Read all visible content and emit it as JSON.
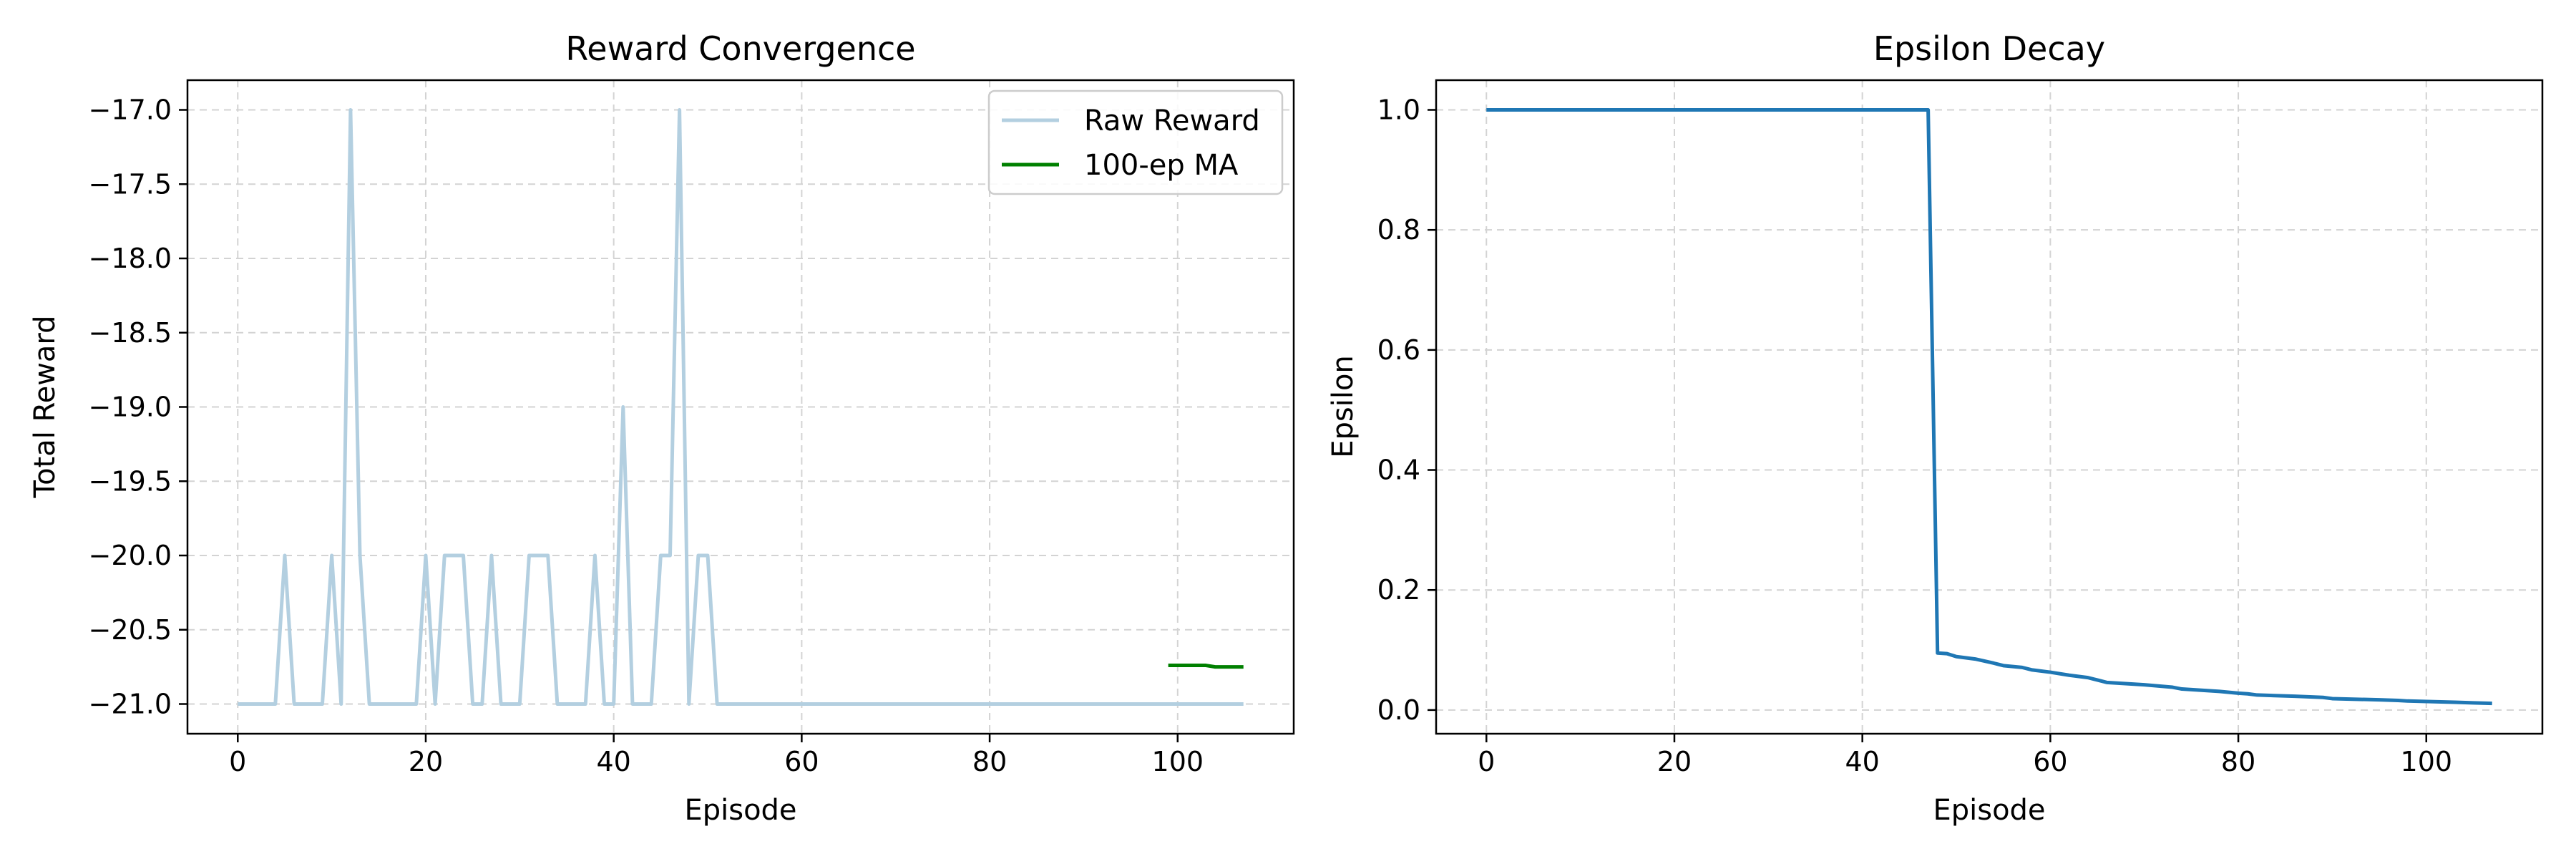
{
  "chart_data": [
    {
      "type": "line",
      "title": "Reward Convergence",
      "xlabel": "Episode",
      "ylabel": "Total Reward",
      "xlim": [
        -5.35,
        112.35
      ],
      "ylim": [
        -21.2,
        -16.8
      ],
      "xticks": [
        0,
        20,
        40,
        60,
        80,
        100
      ],
      "yticks": [
        -21.0,
        -20.5,
        -20.0,
        -19.5,
        -19.0,
        -18.5,
        -18.0,
        -17.5,
        -17.0
      ],
      "ytick_labels": [
        "−21.0",
        "−20.5",
        "−20.0",
        "−19.5",
        "−19.0",
        "−18.5",
        "−18.0",
        "−17.5",
        "−17.0"
      ],
      "grid": true,
      "legend": "top-right",
      "series": [
        {
          "name": "Raw Reward",
          "color": "#b3cfe0",
          "x_start": 0,
          "values": [
            -21,
            -21,
            -21,
            -21,
            -21,
            -20,
            -21,
            -21,
            -21,
            -21,
            -20,
            -21,
            -17,
            -20,
            -21,
            -21,
            -21,
            -21,
            -21,
            -21,
            -20,
            -21,
            -20,
            -20,
            -20,
            -21,
            -21,
            -20,
            -21,
            -21,
            -21,
            -20,
            -20,
            -20,
            -21,
            -21,
            -21,
            -21,
            -20,
            -21,
            -21,
            -19,
            -21,
            -21,
            -21,
            -20,
            -20,
            -17,
            -21,
            -20,
            -20,
            -21,
            -21,
            -21,
            -21,
            -21,
            -21,
            -21,
            -21,
            -21,
            -21,
            -21,
            -21,
            -21,
            -21,
            -21,
            -21,
            -21,
            -21,
            -21,
            -21,
            -21,
            -21,
            -21,
            -21,
            -21,
            -21,
            -21,
            -21,
            -21,
            -21,
            -21,
            -21,
            -21,
            -21,
            -21,
            -21,
            -21,
            -21,
            -21,
            -21,
            -21,
            -21,
            -21,
            -21,
            -21,
            -21,
            -21,
            -21,
            -21,
            -21,
            -21,
            -21,
            -21,
            -21,
            -21,
            -21,
            -21
          ]
        },
        {
          "name": "100-ep MA",
          "color": "#008000",
          "x": [
            99,
            100,
            101,
            102,
            103,
            104,
            105,
            106,
            107
          ],
          "values": [
            -20.74,
            -20.74,
            -20.74,
            -20.74,
            -20.74,
            -20.75,
            -20.75,
            -20.75,
            -20.75
          ]
        }
      ]
    },
    {
      "type": "line",
      "title": "Epsilon Decay",
      "xlabel": "Episode",
      "ylabel": "Epsilon",
      "xlim": [
        -5.35,
        112.35
      ],
      "ylim": [
        -0.0395,
        1.0495
      ],
      "xticks": [
        0,
        20,
        40,
        60,
        80,
        100
      ],
      "yticks": [
        0.0,
        0.2,
        0.4,
        0.6,
        0.8,
        1.0
      ],
      "ytick_labels": [
        "0.0",
        "0.2",
        "0.4",
        "0.6",
        "0.8",
        "1.0"
      ],
      "grid": true,
      "series": [
        {
          "color": "#1f77b4",
          "x": [
            0,
            47,
            48,
            49,
            50,
            52,
            54,
            55,
            57,
            58,
            60,
            62,
            64,
            65,
            66,
            70,
            73,
            74,
            78,
            80,
            81,
            82,
            86,
            89,
            90,
            95,
            97,
            98,
            103,
            105,
            107
          ],
          "values": [
            1.0,
            1.0,
            0.095,
            0.094,
            0.089,
            0.085,
            0.078,
            0.074,
            0.071,
            0.067,
            0.063,
            0.058,
            0.054,
            0.05,
            0.046,
            0.042,
            0.038,
            0.035,
            0.031,
            0.028,
            0.027,
            0.025,
            0.023,
            0.021,
            0.019,
            0.017,
            0.016,
            0.015,
            0.013,
            0.012,
            0.011
          ]
        }
      ]
    }
  ]
}
